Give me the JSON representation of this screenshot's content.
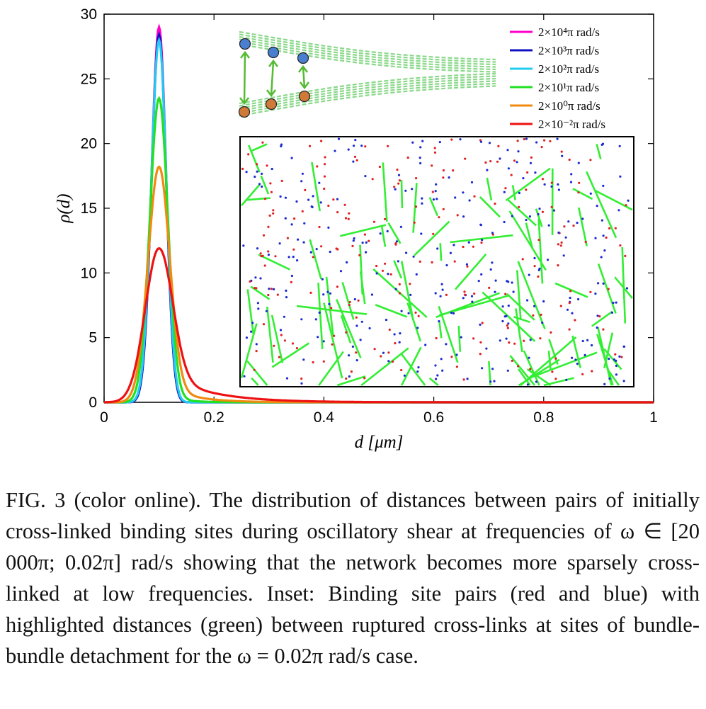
{
  "chart_data": {
    "type": "line",
    "title": "",
    "xlabel": "d [μm]",
    "ylabel": "ρ(d)",
    "xlim": [
      0,
      1
    ],
    "ylim": [
      0,
      30
    ],
    "xticks": [
      "0",
      "0.2",
      "0.4",
      "0.6",
      "0.8",
      "1"
    ],
    "yticks": [
      "0",
      "5",
      "10",
      "15",
      "20",
      "25",
      "30"
    ],
    "grid": false,
    "legend_position": "top-right",
    "series": [
      {
        "name": "2×10⁴π rad/s",
        "color": "#ff00cc",
        "peak_x": 0.1,
        "peak_y": 29.0,
        "width": 0.013,
        "tail": 0.0,
        "tail_decay": 0.02
      },
      {
        "name": "2×10³π rad/s",
        "color": "#1010c0",
        "peak_x": 0.1,
        "peak_y": 28.4,
        "width": 0.013,
        "tail": 0.0,
        "tail_decay": 0.02
      },
      {
        "name": "2×10²π rad/s",
        "color": "#22ccf0",
        "peak_x": 0.1,
        "peak_y": 28.0,
        "width": 0.0135,
        "tail": 0.0,
        "tail_decay": 0.02
      },
      {
        "name": "2×10¹π rad/s",
        "color": "#22e022",
        "peak_x": 0.1,
        "peak_y": 23.5,
        "width": 0.016,
        "tail": 0.8,
        "tail_decay": 0.03
      },
      {
        "name": "2×10⁰π rad/s",
        "color": "#f08a10",
        "peak_x": 0.1,
        "peak_y": 18.2,
        "width": 0.019,
        "tail": 1.6,
        "tail_decay": 0.05
      },
      {
        "name": "2×10⁻²π rad/s",
        "color": "#ee1111",
        "peak_x": 0.1,
        "peak_y": 11.9,
        "width": 0.024,
        "tail": 2.5,
        "tail_decay": 0.08
      }
    ],
    "inset": {
      "description_colors": {
        "site_a": "#e02020",
        "site_b": "#1a2ad0",
        "distance": "#33ee33"
      }
    }
  },
  "caption": {
    "text": "FIG. 3 (color online).  The distribution of distances between pairs of initially cross-linked binding sites during oscillatory shear at frequencies of ω ∈ [20 000π; 0.02π] rad/s showing that the network becomes more sparsely cross-linked at low frequencies. Inset: Binding site pairs (red and blue) with highlighted distances (green) between ruptured cross-links at sites of bundle-bundle detachment for the ω = 0.02π rad/s case."
  }
}
